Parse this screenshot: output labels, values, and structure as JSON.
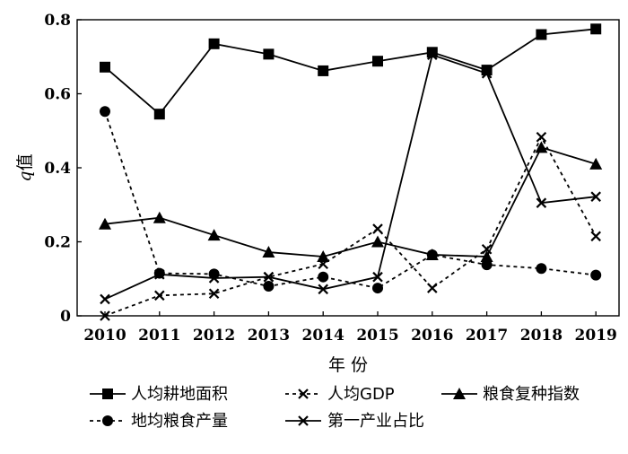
{
  "chart_data": {
    "type": "line",
    "ylabel_italic": "q",
    "ylabel_rest": "值",
    "xlabel": "年 份",
    "ylim": [
      0,
      0.8
    ],
    "yticks": [
      "0",
      "0.2",
      "0.4",
      "0.6",
      "0.8"
    ],
    "x": [
      "2010",
      "2011",
      "2012",
      "2013",
      "2014",
      "2015",
      "2016",
      "2017",
      "2018",
      "2019"
    ],
    "series": [
      {
        "name": "人均耕地面积",
        "marker": "square",
        "dash": "solid",
        "values": [
          0.672,
          0.545,
          0.735,
          0.707,
          0.662,
          0.688,
          0.712,
          0.664,
          0.76,
          0.775
        ]
      },
      {
        "name": "人均GDP",
        "marker": "x",
        "dash": "dashed",
        "values": [
          0.0,
          0.055,
          0.06,
          0.105,
          0.14,
          0.235,
          0.075,
          0.18,
          0.483,
          0.215
        ]
      },
      {
        "name": "粮食复种指数",
        "marker": "triangle",
        "dash": "solid",
        "values": [
          0.248,
          0.265,
          0.218,
          0.172,
          0.16,
          0.2,
          0.165,
          0.16,
          0.455,
          0.41
        ]
      },
      {
        "name": "地均粮食产量",
        "marker": "circle",
        "dash": "dashed",
        "values": [
          0.552,
          0.115,
          0.113,
          0.08,
          0.105,
          0.075,
          0.165,
          0.138,
          0.128,
          0.11
        ]
      },
      {
        "name": "第一产业占比",
        "marker": "x",
        "dash": "solid",
        "values": [
          0.045,
          0.112,
          0.102,
          0.105,
          0.072,
          0.105,
          0.705,
          0.655,
          0.305,
          0.322
        ]
      }
    ],
    "grid": false,
    "legend_position": "bottom"
  }
}
